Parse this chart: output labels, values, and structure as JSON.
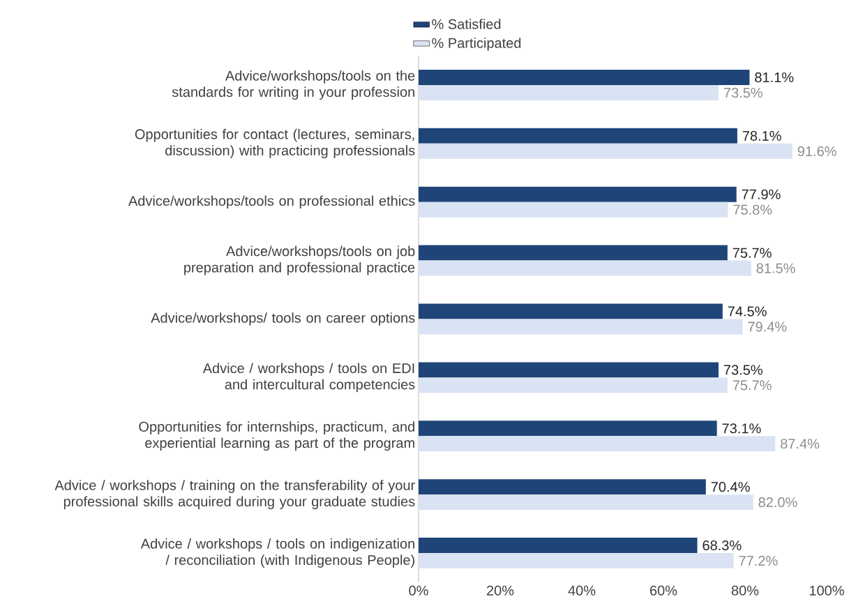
{
  "chart_data": {
    "type": "bar",
    "orientation": "horizontal",
    "categories": [
      "Advice/workshops/tools on the standards for writing in your profession",
      "Opportunities for contact (lectures, seminars, discussion) with practicing professionals",
      "Advice/workshops/tools on professional ethics",
      "Advice/workshops/tools on job preparation and professional practice",
      "Advice/workshops/ tools on career options",
      "Advice / workshops / tools on EDI and intercultural competencies",
      "Opportunities for internships, practicum, and experiential learning as part of the program",
      "Advice / workshops / training on the transferability of your professional skills acquired during your graduate studies",
      "Advice / workshops / tools on indigenization / reconciliation (with Indigenous People)"
    ],
    "series": [
      {
        "name": "% Satisfied",
        "color": "#1f4478",
        "values": [
          81.1,
          78.1,
          77.9,
          75.7,
          74.5,
          73.5,
          73.1,
          70.4,
          68.3
        ],
        "value_labels": [
          "81.1%",
          "78.1%",
          "77.9%",
          "75.7%",
          "74.5%",
          "73.5%",
          "73.1%",
          "70.4%",
          "68.3%"
        ]
      },
      {
        "name": "% Participated",
        "color": "#dae3f3",
        "values": [
          73.5,
          91.6,
          75.8,
          81.5,
          79.4,
          75.7,
          87.4,
          82.0,
          77.2
        ],
        "value_labels": [
          "73.5%",
          "91.6%",
          "75.8%",
          "81.5%",
          "79.4%",
          "75.7%",
          "87.4%",
          "82.0%",
          "77.2%"
        ]
      }
    ],
    "xlim": [
      0,
      100
    ],
    "xticks": [
      {
        "value": 0,
        "label": "0%"
      },
      {
        "value": 20,
        "label": "20%"
      },
      {
        "value": 40,
        "label": "40%"
      },
      {
        "value": 60,
        "label": "60%"
      },
      {
        "value": 80,
        "label": "80%"
      },
      {
        "value": 100,
        "label": "100%"
      }
    ],
    "legend": "top left"
  }
}
